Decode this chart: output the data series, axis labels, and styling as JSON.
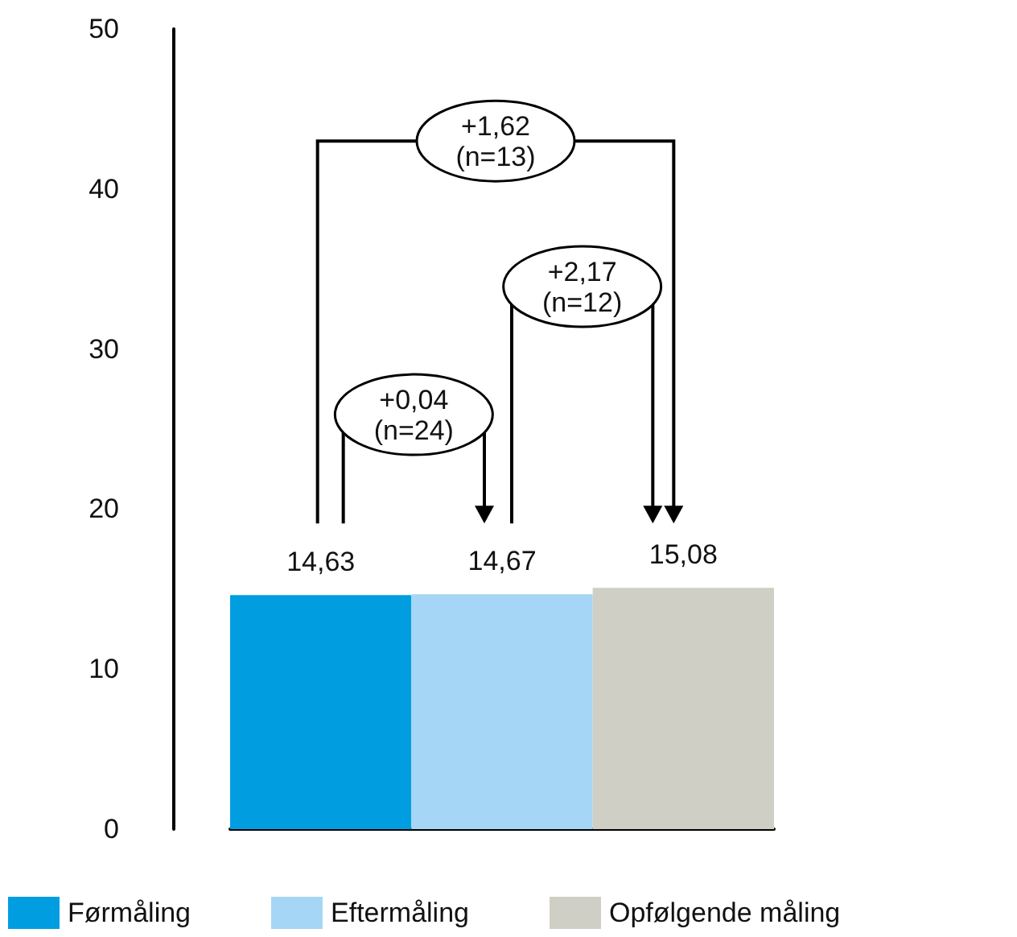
{
  "chart_data": {
    "type": "bar",
    "categories": [
      null,
      null,
      null
    ],
    "stacked": true,
    "series": [
      {
        "name": "Førmåling",
        "color": "#009ee0",
        "values": [
          14.63,
          null,
          null
        ],
        "value_labels": [
          "14,63",
          null,
          null
        ]
      },
      {
        "name": "Eftermåling",
        "color": "#a6d6f5",
        "values": [
          null,
          14.67,
          null
        ],
        "value_labels": [
          null,
          "14,67",
          null
        ]
      },
      {
        "name": "Opfølgende måling",
        "color": "#cfcfc6",
        "values": [
          null,
          null,
          15.08
        ],
        "value_labels": [
          null,
          null,
          "15,08"
        ]
      }
    ],
    "ylim": [
      0,
      50
    ],
    "yticks": [
      0,
      10,
      20,
      30,
      40,
      50
    ],
    "grid": false,
    "legend": "bottom",
    "annotations": [
      "+1,62\n(n=13)",
      "+0,04\n(n=24)",
      "+2,17\n(n=12)"
    ]
  }
}
